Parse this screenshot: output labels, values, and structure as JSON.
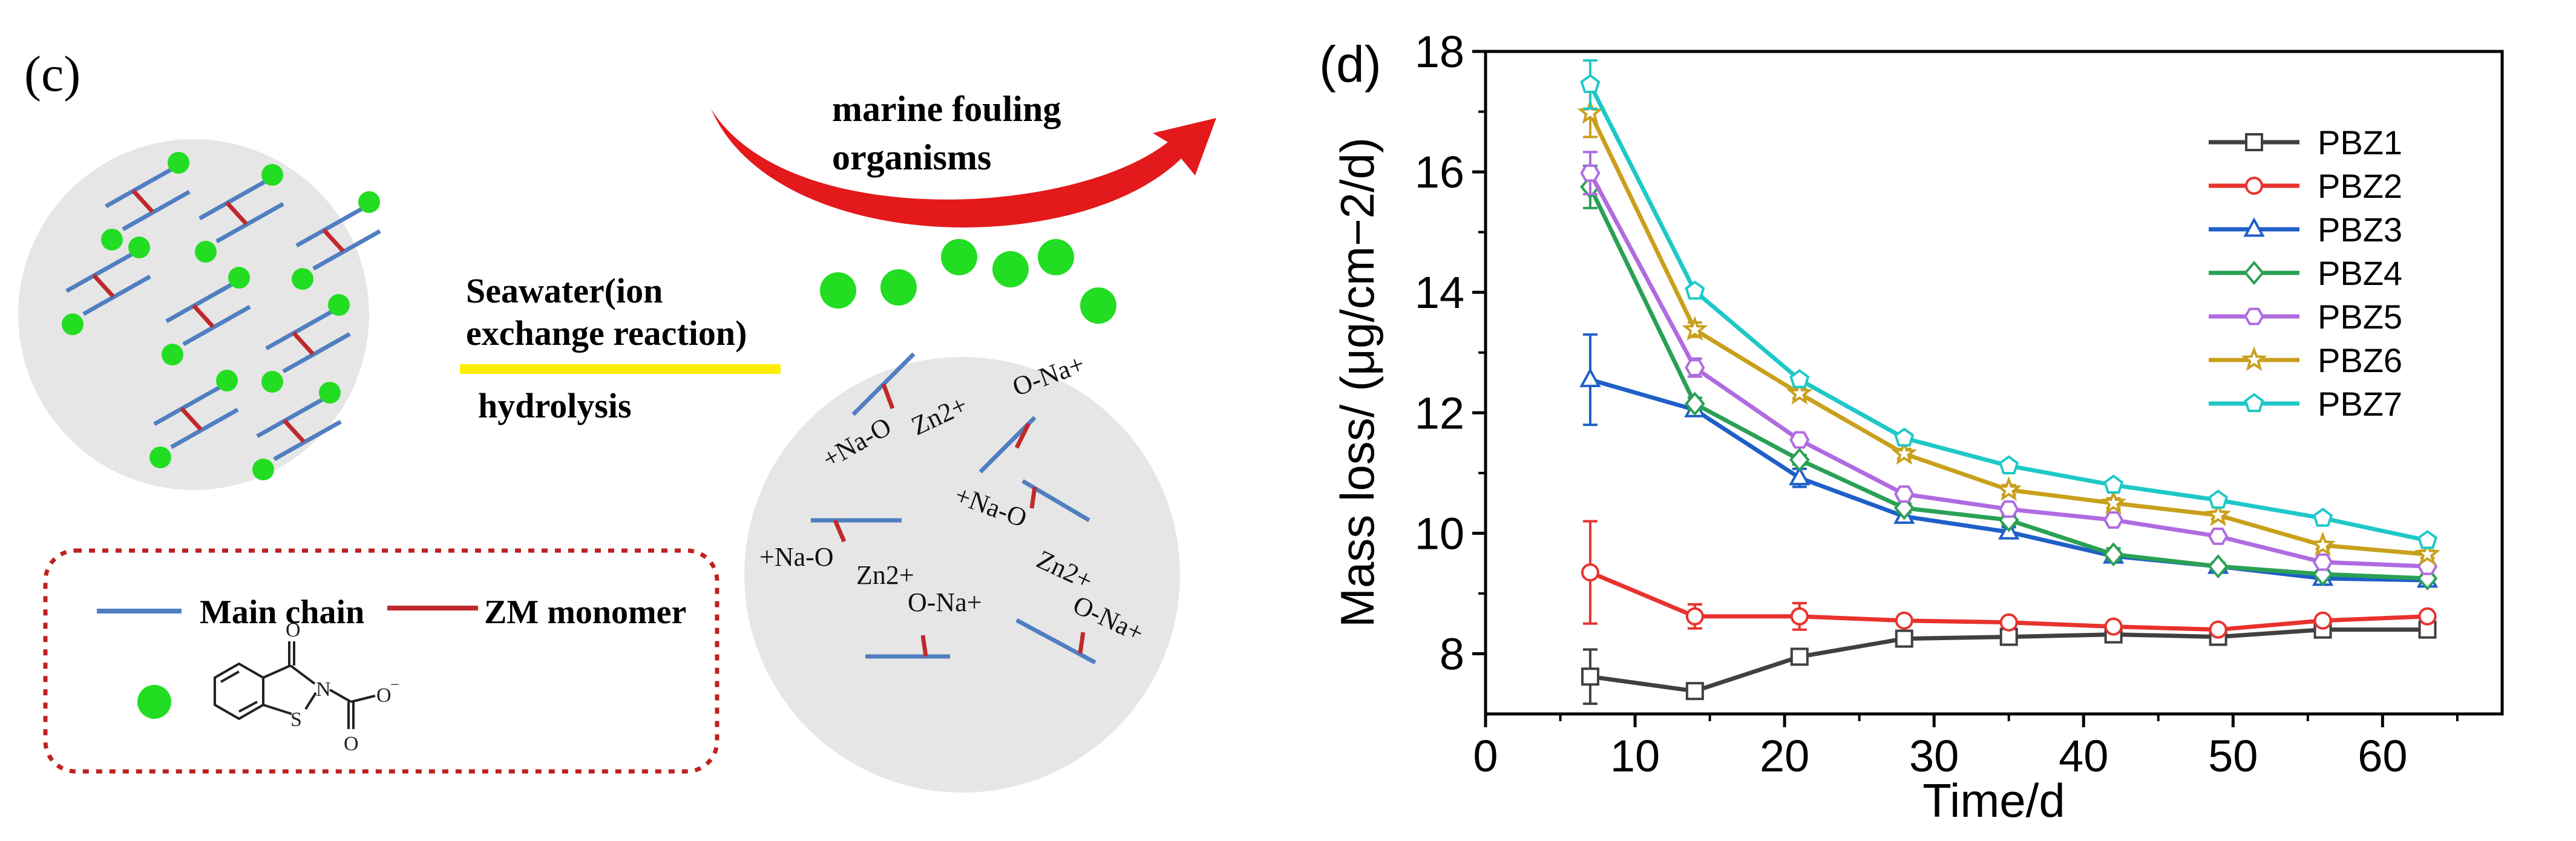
{
  "panel_c": {
    "label": "(c)",
    "arrow_label_line1": "marine fouling",
    "arrow_label_line2": "organisms",
    "process_line1": "Seawater(ion",
    "process_line2": "exchange reaction)",
    "process_line3": "hydrolysis",
    "ions": {
      "na_o_1": "+Na-O",
      "zn_1": "Zn2+",
      "o_na_1": "O-Na+",
      "na_o_2": "+Na-O",
      "na_o_3": "+Na-O",
      "zn_2": "Zn2+",
      "zn_3": "Zn2+",
      "o_na_2": "O-Na+",
      "o_na_3": "O-Na+"
    },
    "legend": {
      "main_chain": "Main chain",
      "zm_monomer": "ZM monomer",
      "mol_O_top": "O",
      "mol_N": "N",
      "mol_S": "S",
      "mol_O_right": "O",
      "mol_O_bottom": "O",
      "mol_charge": "−"
    },
    "colors": {
      "main_chain": "#4f7fc1",
      "zm_monomer": "#c0292b",
      "biocide": "#22dd22",
      "arrow": "#e3191b",
      "process_line": "#ffee00",
      "legend_border": "#c02020",
      "circle": "#e6e6e6"
    }
  },
  "panel_d_label": "(d)",
  "chart_data": {
    "type": "line",
    "xlabel": "Time/d",
    "ylabel": "Mass loss/ (μg/cm−2/d)",
    "xlim": [
      0,
      68
    ],
    "ylim": [
      7,
      18
    ],
    "xticks": [
      0,
      10,
      20,
      30,
      40,
      50,
      60
    ],
    "yticks": [
      8,
      10,
      12,
      14,
      16,
      18
    ],
    "x": [
      7,
      14,
      21,
      28,
      35,
      42,
      49,
      56,
      63
    ],
    "legend_position": "top-right",
    "series": [
      {
        "name": "PBZ1",
        "color": "#404040",
        "marker": "square",
        "values": [
          7.62,
          7.38,
          7.95,
          8.25,
          8.28,
          8.32,
          8.28,
          8.4,
          8.4
        ],
        "errors": [
          0.45,
          0.05,
          0.12,
          0.06,
          0.06,
          0.06,
          0.06,
          0.06,
          0.06
        ]
      },
      {
        "name": "PBZ2",
        "color": "#e8322e",
        "marker": "circle",
        "values": [
          9.35,
          8.62,
          8.62,
          8.55,
          8.52,
          8.45,
          8.4,
          8.55,
          8.62
        ],
        "errors": [
          0.85,
          0.2,
          0.22,
          0.06,
          0.06,
          0.06,
          0.06,
          0.06,
          0.06
        ]
      },
      {
        "name": "PBZ3",
        "color": "#1e5fc8",
        "marker": "triangle",
        "values": [
          12.55,
          12.05,
          10.92,
          10.28,
          10.02,
          9.62,
          9.45,
          9.25,
          9.22
        ],
        "errors": [
          0.75,
          0.08,
          0.15,
          0.08,
          0.08,
          0.08,
          0.06,
          0.06,
          0.06
        ]
      },
      {
        "name": "PBZ4",
        "color": "#2aa055",
        "marker": "diamond",
        "values": [
          15.75,
          12.15,
          11.22,
          10.42,
          10.22,
          9.65,
          9.45,
          9.32,
          9.25
        ],
        "errors": [
          0.35,
          0.1,
          0.08,
          0.08,
          0.08,
          0.1,
          0.06,
          0.06,
          0.06
        ]
      },
      {
        "name": "PBZ5",
        "color": "#b06be0",
        "marker": "hexagon",
        "values": [
          15.98,
          12.75,
          11.55,
          10.65,
          10.4,
          10.22,
          9.95,
          9.52,
          9.45
        ],
        "errors": [
          0.35,
          0.15,
          0.08,
          0.08,
          0.08,
          0.08,
          0.06,
          0.06,
          0.06
        ]
      },
      {
        "name": "PBZ6",
        "color": "#c9a01c",
        "marker": "star",
        "values": [
          16.98,
          13.38,
          12.32,
          11.32,
          10.72,
          10.5,
          10.3,
          9.8,
          9.65
        ],
        "errors": [
          0.4,
          0.12,
          0.08,
          0.08,
          0.08,
          0.08,
          0.06,
          0.06,
          0.06
        ]
      },
      {
        "name": "PBZ7",
        "color": "#1fc8c8",
        "marker": "pentagon",
        "values": [
          17.45,
          14.02,
          12.55,
          11.58,
          11.12,
          10.8,
          10.55,
          10.25,
          9.88
        ],
        "errors": [
          0.4,
          0.08,
          0.08,
          0.08,
          0.06,
          0.06,
          0.06,
          0.06,
          0.06
        ]
      }
    ]
  }
}
